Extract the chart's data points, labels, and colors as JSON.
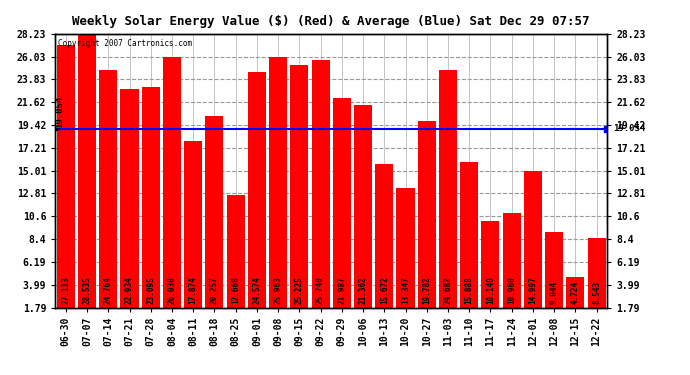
{
  "title": "Weekly Solar Energy Value ($) (Red) & Average (Blue) Sat Dec 29 07:57",
  "copyright": "Copyright 2007 Cartronics.com",
  "categories": [
    "06-30",
    "07-07",
    "07-14",
    "07-21",
    "07-28",
    "08-04",
    "08-11",
    "08-18",
    "08-25",
    "09-01",
    "09-08",
    "09-15",
    "09-22",
    "09-29",
    "10-06",
    "10-13",
    "10-20",
    "10-27",
    "11-03",
    "11-10",
    "11-17",
    "11-24",
    "12-01",
    "12-08",
    "12-15",
    "12-22"
  ],
  "values": [
    27.113,
    28.535,
    24.764,
    22.934,
    23.095,
    26.03,
    17.874,
    20.257,
    12.668,
    24.574,
    25.963,
    25.225,
    25.74,
    21.987,
    21.362,
    15.672,
    13.347,
    19.782,
    24.682,
    15.888,
    10.14,
    10.96,
    14.997,
    9.044,
    4.724,
    8.543
  ],
  "average": 19.054,
  "bar_color": "#ff0000",
  "avg_line_color": "#0000ff",
  "background_color": "#ffffff",
  "plot_bg_color": "#ffffff",
  "grid_color": "#999999",
  "yticks": [
    1.79,
    3.99,
    6.19,
    8.4,
    10.6,
    12.81,
    15.01,
    17.21,
    19.42,
    21.62,
    23.83,
    26.03,
    28.23
  ],
  "ymin": 1.79,
  "ymax": 28.23,
  "avg_label": "19.054",
  "title_fontsize": 9,
  "tick_fontsize": 7,
  "value_fontsize": 5.5
}
